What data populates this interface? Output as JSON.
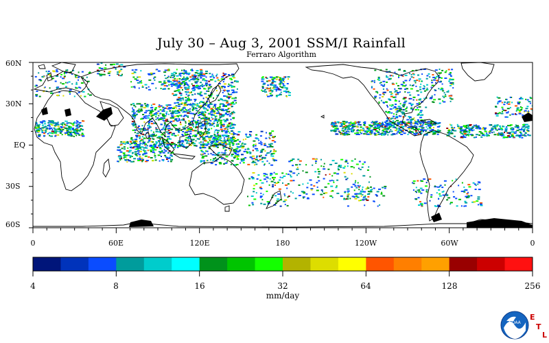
{
  "title": "July 30 – Aug 3, 2001 SSM/I Rainfall",
  "subtitle": "Ferraro Algorithm",
  "lat_labels": [
    "60N",
    "30N",
    "EQ",
    "30S",
    "60S"
  ],
  "lon_labels": [
    "0",
    "60E",
    "120E",
    "180",
    "120W",
    "60W",
    "0"
  ],
  "colorbar": {
    "ticks": [
      "4",
      "8",
      "16",
      "32",
      "64",
      "128",
      "256"
    ],
    "unit": "mm/day",
    "colors": [
      "#00157a",
      "#0033bb",
      "#0a4cff",
      "#009c9c",
      "#00cccc",
      "#00ffff",
      "#00921b",
      "#00c400",
      "#14ff00",
      "#b3b300",
      "#dddd00",
      "#ffff00",
      "#ff5500",
      "#ff7f00",
      "#ffa000",
      "#990000",
      "#cc0000",
      "#ff1111"
    ]
  },
  "logo": {
    "org": "NOAA",
    "letters": [
      "E",
      "T",
      "L"
    ]
  }
}
